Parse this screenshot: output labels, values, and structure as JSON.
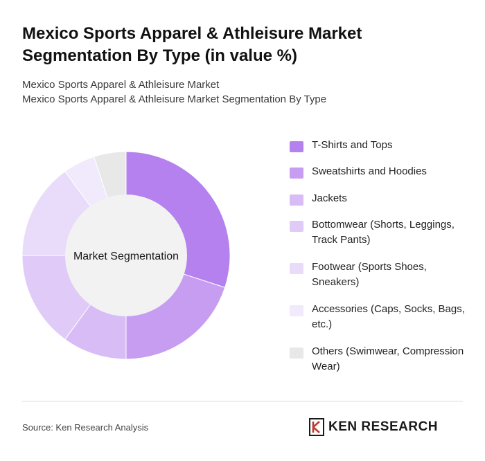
{
  "header": {
    "title": "Mexico Sports Apparel & Athleisure Market Segmentation By Type (in value %)",
    "subtitle_line1": "Mexico Sports Apparel & Athleisure Market",
    "subtitle_line2": "Mexico Sports Apparel & Athleisure Market Segmentation By Type"
  },
  "chart_data": {
    "type": "pie",
    "variant": "donut",
    "center_label": "Market Segmentation",
    "categories": [
      "T-Shirts and Tops",
      "Sweatshirts and Hoodies",
      "Jackets",
      "Bottomwear (Shorts, Leggings, Track Pants)",
      "Footwear (Sports Shoes, Sneakers)",
      "Accessories (Caps, Socks, Bags, etc.)",
      "Others (Swimwear, Compression Wear)"
    ],
    "values": [
      30,
      20,
      10,
      15,
      15,
      5,
      5
    ],
    "colors": [
      "#b481ee",
      "#c79df2",
      "#d8bcf6",
      "#e0cbf8",
      "#e9dbfa",
      "#f1e9fc",
      "#e8e8e8"
    ],
    "center_fill": "#f2f2f2",
    "legend_position": "right"
  },
  "footer": {
    "source": "Source: Ken Research Analysis",
    "brand": "KEN RESEARCH",
    "brand_icon": "ken-research-logo-icon"
  }
}
